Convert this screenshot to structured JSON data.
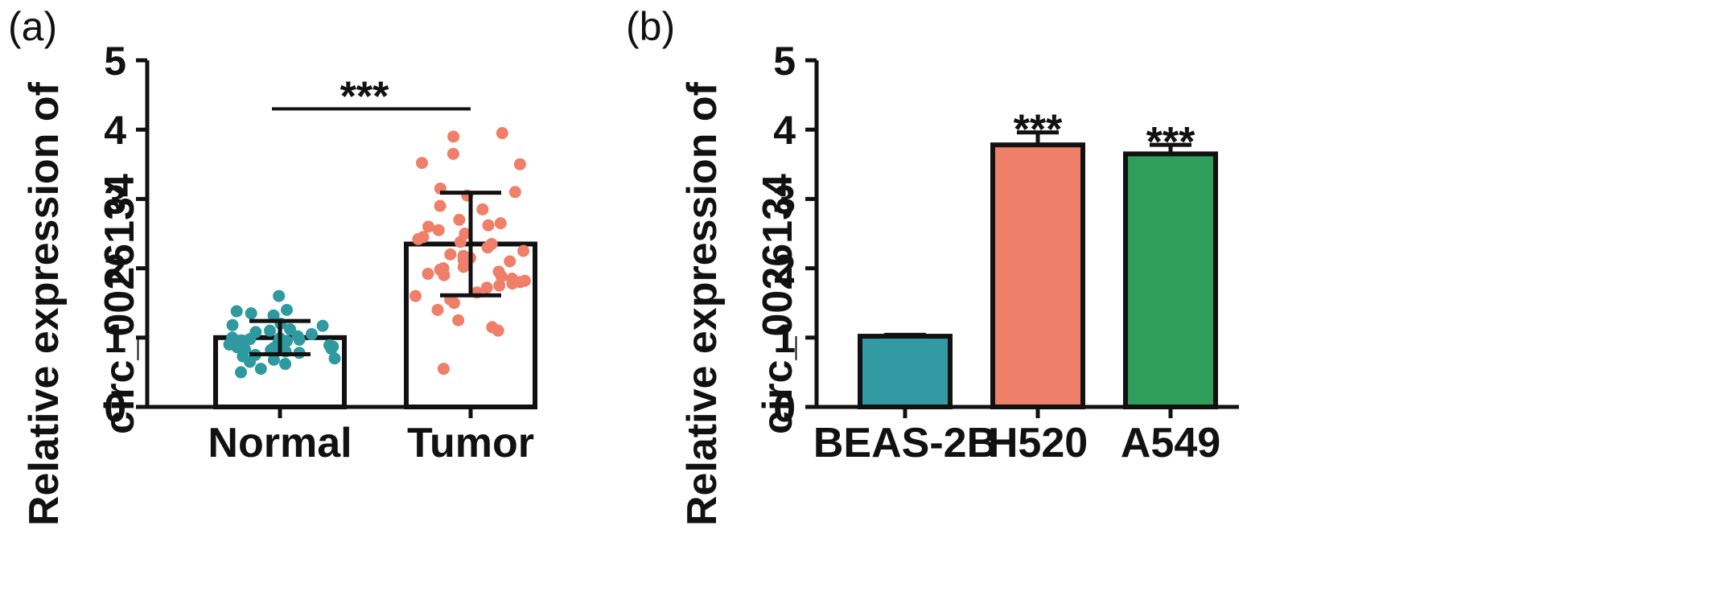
{
  "panels": {
    "a": {
      "label": "(a)"
    },
    "b": {
      "label": "(b)"
    }
  },
  "chart_data": [
    {
      "type": "bar",
      "panel": "(a)",
      "ylabel_line1": "Relative expression of",
      "ylabel_line2": "circ_0026134",
      "ylim": [
        0,
        5
      ],
      "yticks": [
        0,
        1,
        2,
        3,
        4,
        5
      ],
      "categories": [
        "Normal",
        "Tumor"
      ],
      "values": [
        1.0,
        2.35
      ],
      "sd": [
        0.24,
        0.74
      ],
      "significance": "***",
      "colors": {
        "Normal": "#2e9aa0",
        "Tumor": "#ef7f68"
      },
      "points": {
        "Normal": [
          1.6,
          1.4,
          1.38,
          1.35,
          1.32,
          1.2,
          1.18,
          1.17,
          1.12,
          1.1,
          1.08,
          1.05,
          1.02,
          1.0,
          0.99,
          0.98,
          0.97,
          0.96,
          0.95,
          0.93,
          0.92,
          0.9,
          0.89,
          0.87,
          0.86,
          0.85,
          0.84,
          0.83,
          0.82,
          0.8,
          0.78,
          0.75,
          0.73,
          0.7,
          0.68,
          0.65,
          0.62,
          0.55,
          0.5
        ],
        "Tumor": [
          3.95,
          3.9,
          3.65,
          3.52,
          3.5,
          3.15,
          3.1,
          3.05,
          2.9,
          2.85,
          2.7,
          2.65,
          2.62,
          2.6,
          2.55,
          2.5,
          2.45,
          2.42,
          2.38,
          2.35,
          2.3,
          2.25,
          2.2,
          2.18,
          2.15,
          2.12,
          2.1,
          2.05,
          2.02,
          2.0,
          1.98,
          1.95,
          1.92,
          1.9,
          1.88,
          1.85,
          1.82,
          1.8,
          1.78,
          1.75,
          1.72,
          1.65,
          1.6,
          1.55,
          1.5,
          1.4,
          1.25,
          1.15,
          1.1,
          0.55
        ]
      }
    },
    {
      "type": "bar",
      "panel": "(b)",
      "ylabel_line1": "Relative expression of",
      "ylabel_line2": "circ_0026134",
      "ylim": [
        0,
        5
      ],
      "yticks": [
        0,
        1,
        2,
        3,
        4,
        5
      ],
      "categories": [
        "BEAS-2B",
        "H520",
        "A549"
      ],
      "values": [
        1.02,
        3.78,
        3.65
      ],
      "error": [
        0.02,
        0.18,
        0.13
      ],
      "significance": [
        "",
        "***",
        "***"
      ],
      "colors": [
        "#3399a2",
        "#ee7f68",
        "#2f9e5c"
      ]
    }
  ]
}
